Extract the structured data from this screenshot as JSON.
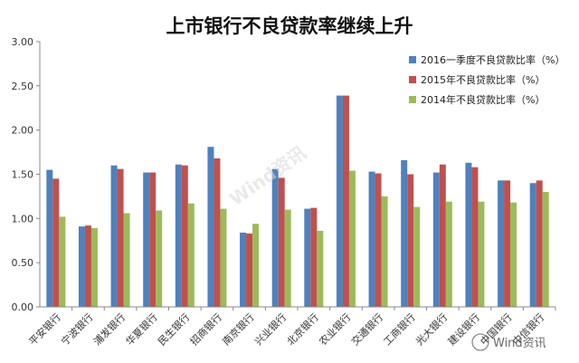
{
  "chart_data": {
    "type": "bar",
    "title": "上市银行不良贷款率继续上升",
    "xlabel": "",
    "ylabel": "",
    "ylim": [
      0,
      3
    ],
    "yticks": [
      "0.00",
      "0.50",
      "1.00",
      "1.50",
      "2.00",
      "2.50",
      "3.00"
    ],
    "grid": false,
    "legend_position": "top-right",
    "categories": [
      "平安银行",
      "宁波银行",
      "浦发银行",
      "华夏银行",
      "民生银行",
      "招商银行",
      "南京银行",
      "兴业银行",
      "北京银行",
      "农业银行",
      "交通银行",
      "工商银行",
      "光大银行",
      "建设银行",
      "中国银行",
      "中信银行"
    ],
    "series": [
      {
        "name": "2016一季度不良贷款比率（%）",
        "color": "#4f81bd",
        "values": [
          1.55,
          0.91,
          1.6,
          1.52,
          1.61,
          1.81,
          0.84,
          1.56,
          1.11,
          2.39,
          1.53,
          1.66,
          1.52,
          1.63,
          1.43,
          1.4
        ]
      },
      {
        "name": "2015年不良贷款比率（%）",
        "color": "#c0504d",
        "values": [
          1.45,
          0.92,
          1.56,
          1.52,
          1.6,
          1.68,
          0.83,
          1.46,
          1.12,
          2.39,
          1.51,
          1.5,
          1.61,
          1.58,
          1.43,
          1.43
        ]
      },
      {
        "name": "2014年不良贷款比率（%）",
        "color": "#9bbb59",
        "values": [
          1.02,
          0.89,
          1.06,
          1.09,
          1.17,
          1.11,
          0.94,
          1.1,
          0.86,
          1.54,
          1.25,
          1.13,
          1.19,
          1.19,
          1.18,
          1.3
        ]
      }
    ]
  },
  "watermark_text": "Wind资讯",
  "corner_mark_text": "Wind资讯"
}
